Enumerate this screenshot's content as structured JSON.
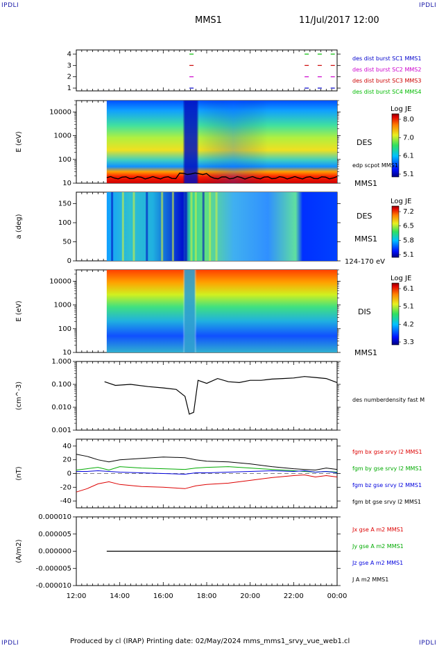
{
  "corner_label": "IPDLI",
  "header": {
    "spacecraft": "MMS1",
    "datetime": "11/Jul/2017 12:00"
  },
  "footer": {
    "text": "Produced by cl (IRAP)   Printing date: 02/May/2024   mms_mms1_srvy_vue_web1.cl"
  },
  "time_axis": [
    "12:00",
    "14:00",
    "16:00",
    "18:00",
    "20:00",
    "22:00",
    "00:00"
  ],
  "chart_data": [
    {
      "type": "timeline",
      "panel": "burst",
      "yticks": [
        "1",
        "2",
        "3",
        "4"
      ],
      "legend": [
        {
          "text": "des dist burst SC1 MMS1",
          "color": "#0000cc"
        },
        {
          "text": "des dist burst SC2 MMS2",
          "color": "#cc00cc"
        },
        {
          "text": "des dist burst SC3 MMS3",
          "color": "#cc0000"
        },
        {
          "text": "des dist burst SC4 MMS4",
          "color": "#00bb00"
        }
      ],
      "intervals_hours": [
        17.3,
        22.6,
        23.2,
        23.8
      ]
    },
    {
      "type": "heatmap",
      "panel": "des_energy",
      "ylabel": "E (eV)",
      "yticks": [
        "10",
        "100",
        "1000",
        "10000"
      ],
      "ylim": [
        10,
        30000
      ],
      "side_label": "DES",
      "curve_label": "edp scpot MMS1",
      "sc_label": "MMS1",
      "colorbar": {
        "title": "Log JE",
        "ticks": [
          "8.0",
          "7.0",
          "6.1",
          "5.1"
        ]
      }
    },
    {
      "type": "heatmap",
      "panel": "des_pitch",
      "ylabel": "a (deg)",
      "yticks": [
        "0",
        "50",
        "100",
        "150"
      ],
      "ylim": [
        0,
        180
      ],
      "side_label": "DES",
      "sc_label": "MMS1",
      "energy_label": "124-170 eV",
      "colorbar": {
        "title": "Log JE",
        "ticks": [
          "7.2",
          "6.5",
          "5.8",
          "5.1"
        ]
      }
    },
    {
      "type": "heatmap",
      "panel": "dis_energy",
      "ylabel": "E (eV)",
      "yticks": [
        "10",
        "100",
        "1000",
        "10000"
      ],
      "ylim": [
        10,
        30000
      ],
      "side_label": "DIS",
      "sc_label": "MMS1",
      "colorbar": {
        "title": "Log JE",
        "ticks": [
          "6.1",
          "5.1",
          "4.2",
          "3.3"
        ]
      }
    },
    {
      "type": "line",
      "panel": "density",
      "ylabel": "(cm^-3)",
      "yticks": [
        "0.001",
        "0.010",
        "0.100",
        "1.000"
      ],
      "ylim": [
        0.001,
        1.0
      ],
      "series_label": "des numberdensity fast M",
      "x": [
        13.3,
        13.8,
        14.5,
        15.3,
        16.0,
        16.6,
        17.0,
        17.2,
        17.4,
        17.6,
        18.0,
        18.5,
        19.0,
        19.5,
        20.0,
        20.5,
        21.0,
        21.5,
        22.0,
        22.5,
        23.0,
        23.5,
        24.0
      ],
      "values": [
        0.13,
        0.09,
        0.1,
        0.08,
        0.07,
        0.06,
        0.03,
        0.005,
        0.006,
        0.15,
        0.11,
        0.18,
        0.13,
        0.12,
        0.15,
        0.15,
        0.17,
        0.18,
        0.19,
        0.22,
        0.2,
        0.18,
        0.12
      ]
    },
    {
      "type": "line",
      "panel": "fgm",
      "ylabel": "(nT)",
      "yticks": [
        "-40",
        "-20",
        "0",
        "20",
        "40"
      ],
      "ylim": [
        -50,
        50
      ],
      "x": [
        12.0,
        12.5,
        13.0,
        13.5,
        14.0,
        15.0,
        16.0,
        17.0,
        17.5,
        18.0,
        19.0,
        20.0,
        21.0,
        22.0,
        22.5,
        23.0,
        23.5,
        24.0
      ],
      "series": [
        {
          "name": "fgm bx gse srvy l2 MMS1",
          "color": "#dd0000",
          "values": [
            -27,
            -22,
            -15,
            -12,
            -16,
            -19,
            -20,
            -22,
            -18,
            -16,
            -14,
            -10,
            -6,
            -3,
            -2,
            -5,
            -3,
            -5
          ]
        },
        {
          "name": "fgm by gse srvy l2 MMS1",
          "color": "#00aa00",
          "values": [
            5,
            7,
            9,
            5,
            10,
            8,
            7,
            6,
            8,
            9,
            10,
            8,
            6,
            4,
            3,
            2,
            3,
            2
          ]
        },
        {
          "name": "fgm bz gse srvy l2 MMS1",
          "color": "#0000dd",
          "values": [
            3,
            3,
            4,
            3,
            2,
            1,
            0,
            -1,
            1,
            1,
            2,
            3,
            4,
            3,
            4,
            2,
            3,
            1
          ]
        },
        {
          "name": "fgm bt gse srvy l2 MMS1",
          "color": "#000000",
          "values": [
            28,
            25,
            20,
            17,
            20,
            22,
            24,
            23,
            20,
            18,
            17,
            14,
            10,
            7,
            6,
            5,
            8,
            6
          ]
        }
      ]
    },
    {
      "type": "line",
      "panel": "current",
      "ylabel": "(A/m2)",
      "yticks": [
        "-0.000010",
        "-0.000005",
        "0.000000",
        "0.000005",
        "0.000010"
      ],
      "ylim": [
        -1e-05,
        1e-05
      ],
      "series": [
        {
          "name": "Jx gse A m2 MMS1",
          "color": "#dd0000"
        },
        {
          "name": "Jy gse A m2 MMS1",
          "color": "#00aa00"
        },
        {
          "name": "Jz gse A m2 MMS1",
          "color": "#0000dd"
        },
        {
          "name": "J A m2 MMS1",
          "color": "#000000"
        }
      ],
      "values": [
        0,
        0
      ]
    }
  ]
}
